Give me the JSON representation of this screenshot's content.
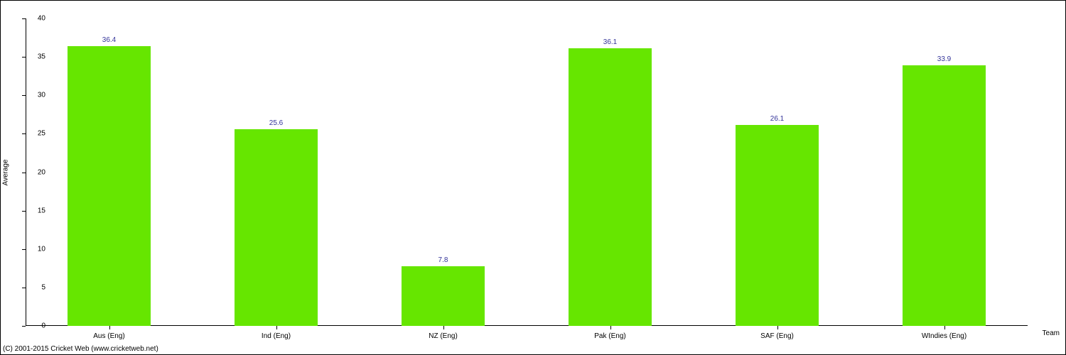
{
  "chart": {
    "type": "bar",
    "categories": [
      "Aus (Eng)",
      "Ind (Eng)",
      "NZ (Eng)",
      "Pak (Eng)",
      "SAF (Eng)",
      "WIndies (Eng)"
    ],
    "values": [
      36.4,
      25.6,
      7.8,
      36.1,
      26.1,
      33.9
    ],
    "bar_color": "#66e600",
    "value_label_color": "#333399",
    "tick_label_color": "#000000",
    "axis_color": "#000000",
    "background_color": "#ffffff",
    "ylabel": "Average",
    "xlabel": "Team",
    "ylim": [
      0,
      40
    ],
    "ytick_step": 5,
    "label_fontsize": 10,
    "bar_width_ratio": 0.5
  },
  "copyright": "(C) 2001-2015 Cricket Web (www.cricketweb.net)"
}
